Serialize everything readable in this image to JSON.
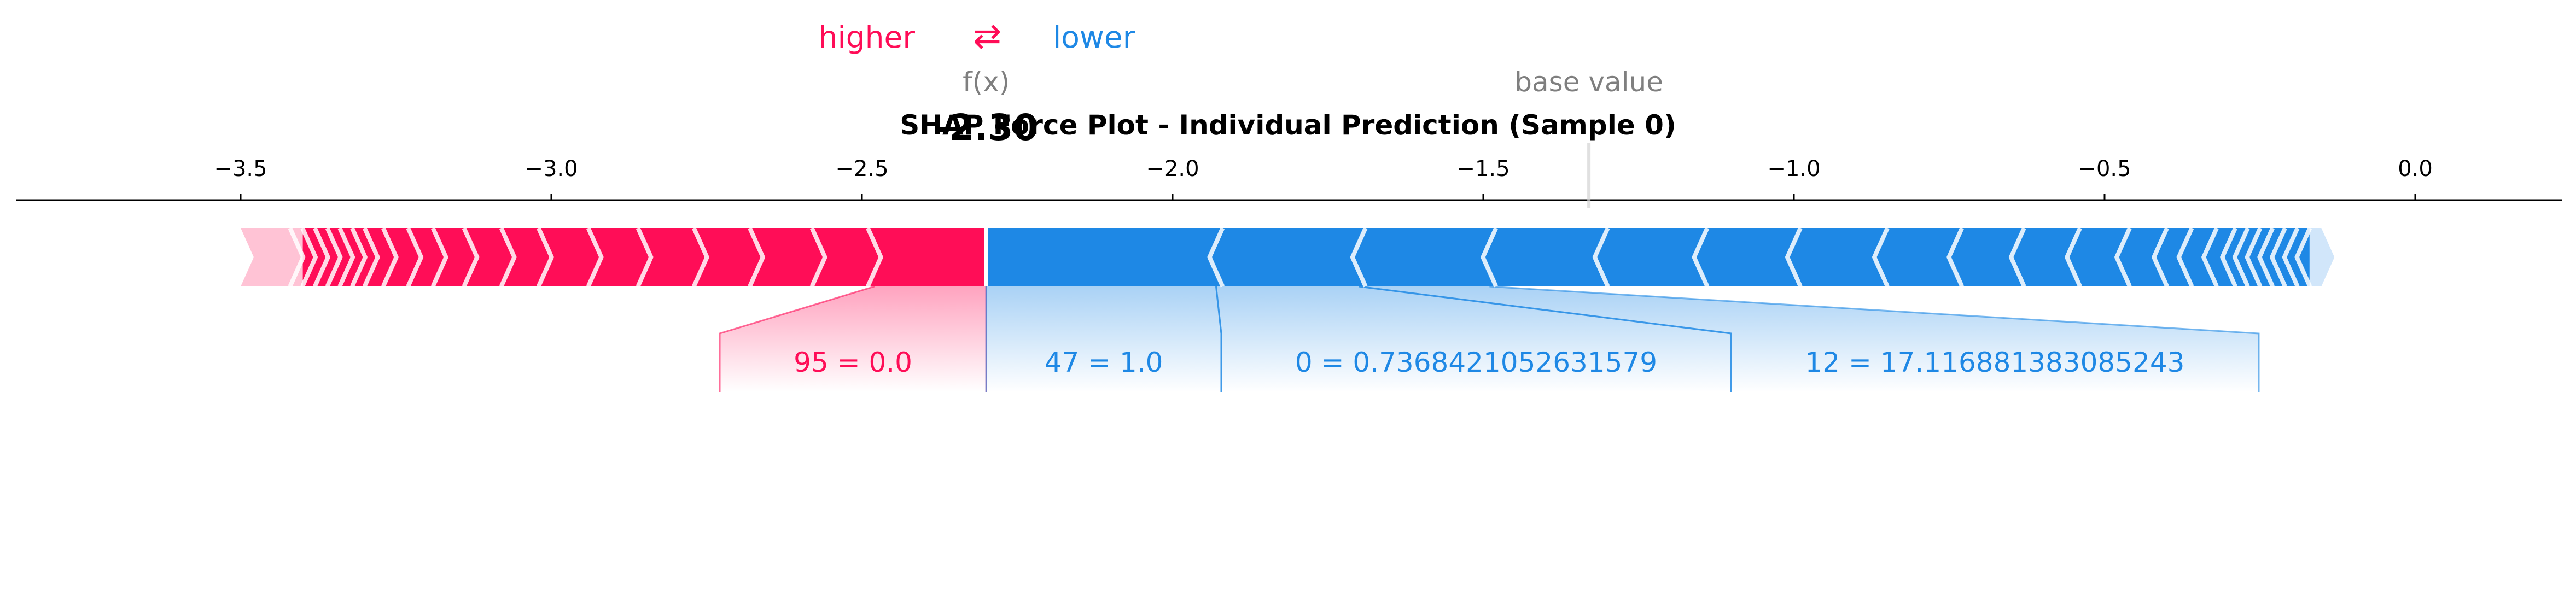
{
  "chart_data": {
    "type": "force",
    "title": "SHAP Force Plot - Individual Prediction (Sample 0)",
    "legend": {
      "higher_label": "higher",
      "lower_label": "lower",
      "arrows": "⇄"
    },
    "fx_label": "f(x)",
    "fx_value": -2.3,
    "fx_display": "-2.30",
    "base_value_label": "base value",
    "base_value": -1.33,
    "xlim": [
      -3.88,
      0.23
    ],
    "ticks": [
      {
        "value": -3.5,
        "label": "−3.5"
      },
      {
        "value": -3.0,
        "label": "−3.0"
      },
      {
        "value": -2.5,
        "label": "−2.5"
      },
      {
        "value": -2.0,
        "label": "−2.0"
      },
      {
        "value": -1.5,
        "label": "−1.5"
      },
      {
        "value": -1.0,
        "label": "−1.0"
      },
      {
        "value": -0.5,
        "label": "−0.5"
      },
      {
        "value": 0.0,
        "label": "0.0"
      }
    ],
    "positive_range": [
      -3.5,
      -2.3
    ],
    "negative_range": [
      -2.3,
      -0.13
    ],
    "positive_chevrons": [
      -3.41,
      -3.39,
      -3.37,
      -3.35,
      -3.33,
      -3.31,
      -3.29,
      -3.26,
      -3.22,
      -3.18,
      -3.13,
      -3.07,
      -3.01,
      -2.93,
      -2.85,
      -2.76,
      -2.67,
      -2.57,
      -2.48
    ],
    "negative_chevrons": [
      -1.93,
      -1.7,
      -1.49,
      -1.31,
      -1.15,
      -1.0,
      -0.86,
      -0.74,
      -0.64,
      -0.55,
      -0.47,
      -0.41,
      -0.37,
      -0.33,
      -0.3,
      -0.28,
      -0.26,
      -0.24,
      -0.22,
      -0.2,
      -0.18
    ],
    "colors": {
      "positive": "#ff0d57",
      "negative": "#1e88e5",
      "positive_light": "#ffc3d5",
      "negative_light": "#d1e6fa",
      "label_gray": "#7f7f7f"
    },
    "features": [
      {
        "label": "95 = 0.0",
        "effect": "positive",
        "from": -2.48,
        "to": -2.3
      },
      {
        "label": "47 = 1.0",
        "effect": "negative",
        "from": -2.3,
        "to": -1.93
      },
      {
        "label": "0 = 0.7368421052631579",
        "effect": "negative",
        "from": -1.93,
        "to": -1.7
      },
      {
        "label": "12 = 17.116881383085243",
        "effect": "negative",
        "from": -1.7,
        "to": -1.49
      }
    ]
  }
}
